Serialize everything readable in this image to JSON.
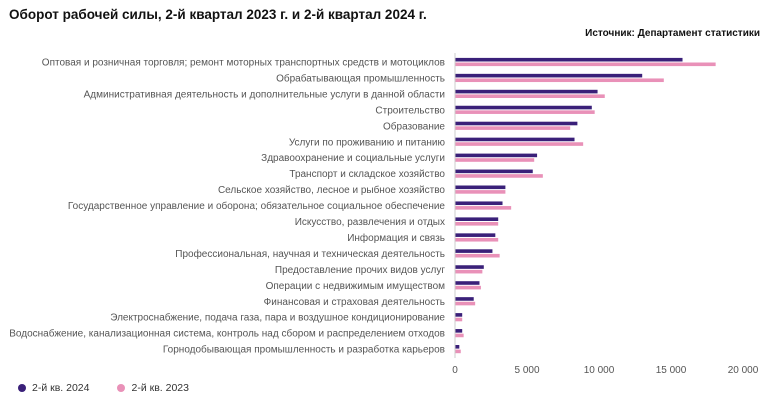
{
  "header": {
    "title": "Оборот рабочей силы, 2-й квартал 2023 г. и 2-й квартал 2024 г.",
    "source": "Источник: Департамент статистики"
  },
  "colors": {
    "series_2024": "#3a2079",
    "series_2023": "#e991b8",
    "axis": "#cccccc"
  },
  "chart_data": {
    "type": "bar",
    "orientation": "horizontal",
    "title": "Оборот рабочей силы, 2-й квартал 2023 г. и 2-й квартал 2024 г.",
    "xlabel": "",
    "ylabel": "",
    "xlim": [
      0,
      20000
    ],
    "xticks": [
      0,
      5000,
      10000,
      15000,
      20000
    ],
    "xtick_labels": [
      "0",
      "5 000",
      "10 000",
      "15 000",
      "20 000"
    ],
    "grid": false,
    "legend_position": "bottom-left",
    "categories": [
      "Оптовая и розничная торговля; ремонт моторных транспортных средств и мотоциклов",
      "Обрабатывающая промышленность",
      "Административная деятельность и дополнительные услуги в данной области",
      "Строительство",
      "Образование",
      "Услуги по проживанию и питанию",
      "Здравоохранение и социальные услуги",
      "Транспорт и складское хозяйство",
      "Сельское хозяйство, лесное и рыбное хозяйство",
      "Государственное управление и оборона; обязательное социальное обеспечение",
      "Искусство, развлечения и отдых",
      "Информация и связь",
      "Профессиональная, научная и техническая деятельность",
      "Предоставление прочих видов услуг",
      "Операции с недвижимым имуществом",
      "Финансовая и страховая деятельность",
      "Электроснабжение, подача газа, пара и воздушное кондиционирование",
      "Водоснабжение, канализационная система, контроль над сбором и распределением отходов",
      "Горнодобывающая промышленность и разработка карьеров"
    ],
    "series": [
      {
        "name": "2-й кв. 2024",
        "color": "#3a2079",
        "values": [
          15800,
          13000,
          9900,
          9500,
          8500,
          8300,
          5700,
          5400,
          3500,
          3300,
          3000,
          2800,
          2600,
          2000,
          1700,
          1300,
          500,
          500,
          300
        ]
      },
      {
        "name": "2-й кв. 2023",
        "color": "#e991b8",
        "values": [
          18100,
          14500,
          10400,
          9700,
          8000,
          8900,
          5500,
          6100,
          3500,
          3900,
          3000,
          3000,
          3100,
          1900,
          1800,
          1400,
          500,
          600,
          400
        ]
      }
    ]
  }
}
